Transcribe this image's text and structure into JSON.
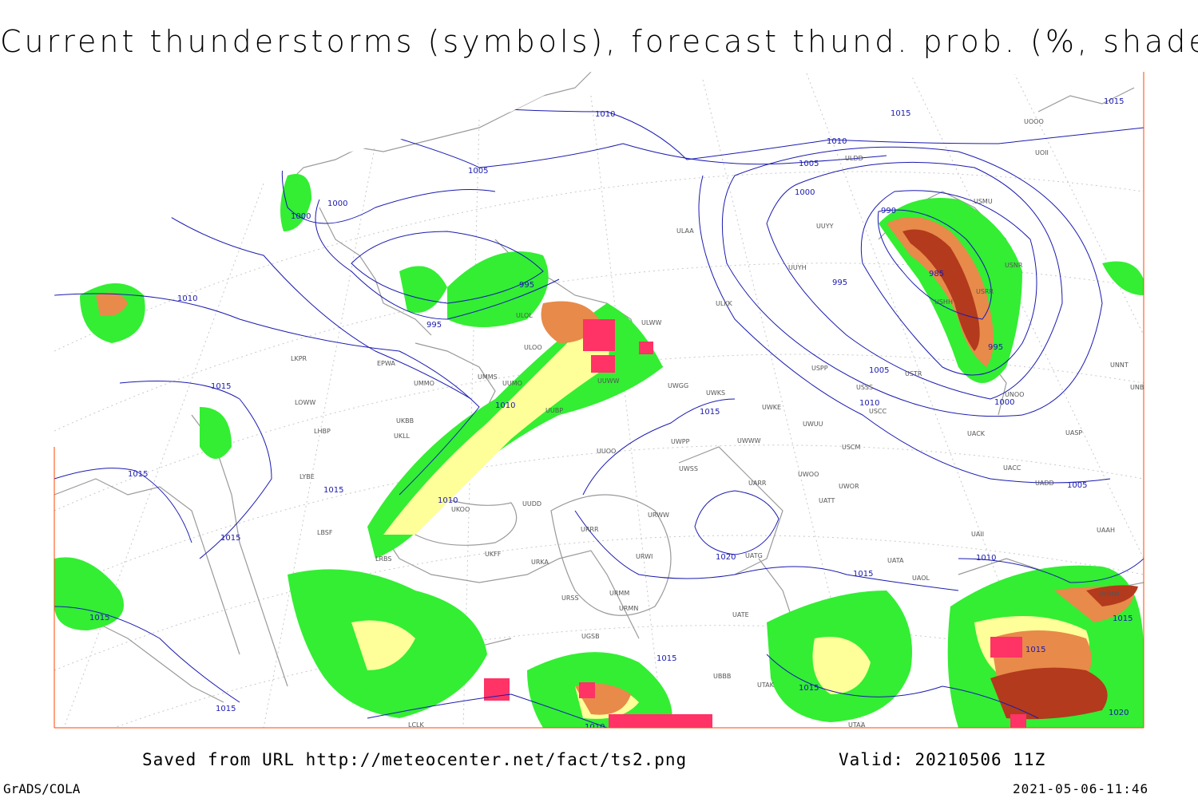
{
  "title": "Current thunderstorms (symbols), forecast thund. prob. (%, shaded)",
  "footer": {
    "saved": "Saved from URL http://meteocenter.net/fact/ts2.png",
    "valid": "Valid: 20210506 11Z",
    "software": "GrADS/COLA",
    "timestamp": "2021-05-06-11:46"
  },
  "colors": {
    "isobar": "#1a1ab0",
    "coast": "#9a9a9a",
    "grid": "#c8c8c8",
    "border": "#ff4400",
    "prob_low": "#33ee33",
    "prob_mid": "#ffff99",
    "prob_high": "#e88a4a",
    "prob_max": "#b33a1c",
    "storm_symbol": "#ff3366"
  },
  "isobar_labels": [
    "1000",
    "1010",
    "1005",
    "1000",
    "995",
    "995",
    "1010",
    "1015",
    "1010",
    "1005",
    "1000",
    "995",
    "1005",
    "1010",
    "1015",
    "1015",
    "1015",
    "1010",
    "1015",
    "1015",
    "1015",
    "1020",
    "1015",
    "1010",
    "1015",
    "1020",
    "1010",
    "1015",
    "1015",
    "1015",
    "990",
    "985",
    "995",
    "1000",
    "1005",
    "1010",
    "1015",
    "1015"
  ],
  "stations": [
    "ULAA",
    "ULKK",
    "ULWW",
    "ULOL",
    "ULOO",
    "UUWW",
    "UUMO",
    "UMMS",
    "UMMO",
    "EPWA",
    "LKPR",
    "LOWW",
    "LHBP",
    "LYBE",
    "LBSF",
    "LRBS",
    "UKLL",
    "UKBB",
    "UKOO",
    "UKFF",
    "URKA",
    "URRR",
    "URSS",
    "URMM",
    "URMN",
    "URWI",
    "URWW",
    "UUOO",
    "UUBP",
    "UUDD",
    "UWGG",
    "UWKS",
    "UWKE",
    "UWUU",
    "UWWW",
    "UWPP",
    "UWSS",
    "UWOO",
    "UWOR",
    "UATT",
    "UARR",
    "UATG",
    "UATE",
    "UATA",
    "UAOL",
    "UAII",
    "UACC",
    "UASP",
    "UACK",
    "UADD",
    "USCM",
    "USCC",
    "USSS",
    "USTR",
    "USPP",
    "USRR",
    "USMU",
    "USNR",
    "USHH",
    "UNOO",
    "UNNT",
    "UNBB",
    "UHMM",
    "UOOO",
    "UOII",
    "ULDD",
    "UUYY",
    "UUYH",
    "UGSB",
    "UBBB",
    "LCLK",
    "UTAK",
    "UTAA",
    "UAAH"
  ]
}
